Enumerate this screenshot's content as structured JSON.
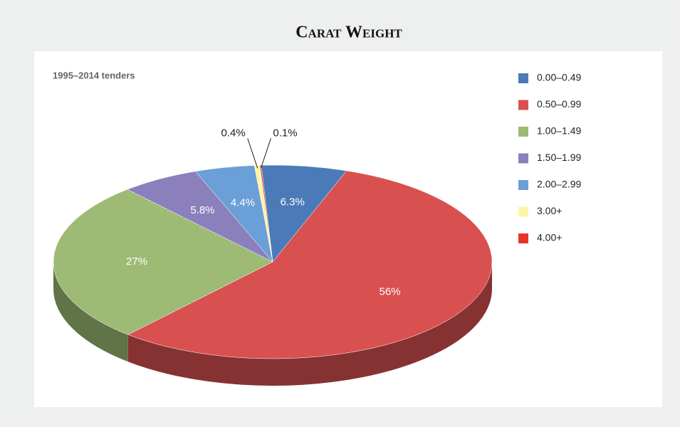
{
  "chart_data": {
    "type": "pie3d",
    "title": "Carat Weight",
    "subtitle": "1995–2014 tenders",
    "categories": [
      "0.00–0.49",
      "0.50–0.99",
      "1.00–1.49",
      "1.50–1.99",
      "2.00–2.99",
      "3.00+",
      "4.00+"
    ],
    "values": [
      6.3,
      56,
      27,
      5.8,
      4.4,
      0.4,
      0.1
    ],
    "value_labels": [
      "6.3%",
      "56%",
      "27%",
      "5.8%",
      "4.4%",
      "0.4%",
      "0.1%"
    ],
    "colors": [
      "#4a7ab8",
      "#d95050",
      "#9dbb74",
      "#8b80bb",
      "#6a9fd8",
      "#fdf5a8",
      "#e8342a"
    ],
    "legend": "right"
  }
}
